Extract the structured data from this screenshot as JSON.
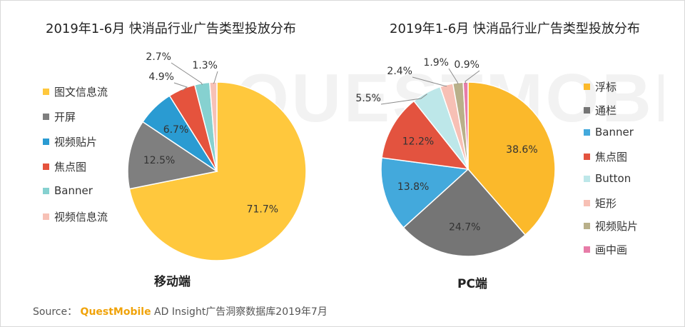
{
  "charts": [
    {
      "title": "2019年1-6月 快消品行业广告类型投放分布",
      "caption": "移动端"
    },
    {
      "title": "2019年1-6月 快消品行业广告类型投放分布",
      "caption": "PC端"
    }
  ],
  "watermark": "QUESTMOBILE",
  "source": {
    "prefix": "Source：",
    "brand": "QuestMobile",
    "rest": " AD Insight广告洞察数据库2019年7月"
  },
  "chart_data": [
    {
      "type": "pie",
      "title": "2019年1-6月 快消品行业广告类型投放分布",
      "legend_position": "left",
      "series": [
        {
          "name": "图文信息流",
          "value": 71.7,
          "label": "71.7%",
          "color": "#ffc83d"
        },
        {
          "name": "开屏",
          "value": 12.5,
          "label": "12.5%",
          "color": "#7f7f7f"
        },
        {
          "name": "视频贴片",
          "value": 6.7,
          "label": "6.7%",
          "color": "#2a9bd2"
        },
        {
          "name": "焦点图",
          "value": 4.9,
          "label": "4.9%",
          "color": "#e5533d"
        },
        {
          "name": "Banner",
          "value": 2.7,
          "label": "2.7%",
          "color": "#86d1d0"
        },
        {
          "name": "视频信息流",
          "value": 1.3,
          "label": "1.3%",
          "color": "#f7c1b6"
        }
      ]
    },
    {
      "type": "pie",
      "title": "2019年1-6月 快消品行业广告类型投放分布",
      "legend_position": "right",
      "series": [
        {
          "name": "浮标",
          "value": 38.6,
          "label": "38.6%",
          "color": "#fbb92b"
        },
        {
          "name": "通栏",
          "value": 24.7,
          "label": "24.7%",
          "color": "#757575"
        },
        {
          "name": "Banner",
          "value": 13.8,
          "label": "13.8%",
          "color": "#43a9dc"
        },
        {
          "name": "焦点图",
          "value": 12.2,
          "label": "12.2%",
          "color": "#e3533f"
        },
        {
          "name": "Button",
          "value": 5.5,
          "label": "5.5%",
          "color": "#bde7e9"
        },
        {
          "name": "矩形",
          "value": 2.4,
          "label": "2.4%",
          "color": "#f7c0b5"
        },
        {
          "name": "视频贴片",
          "value": 1.9,
          "label": "1.9%",
          "color": "#b9b08a"
        },
        {
          "name": "画中画",
          "value": 0.9,
          "label": "0.9%",
          "color": "#e77ca8"
        }
      ]
    }
  ]
}
